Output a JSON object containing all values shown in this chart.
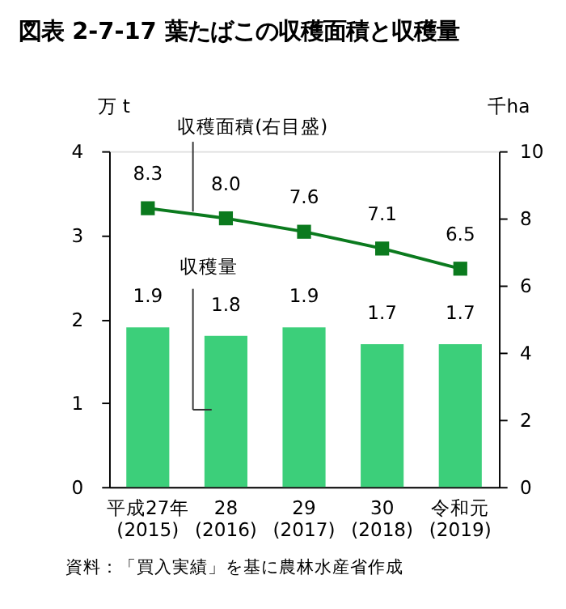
{
  "chart_data": {
    "type": "bar",
    "title": "図表 2-7-17 葉たばこの収穫面積と収穫量",
    "categories": [
      "平成27年\n(2015)",
      "28\n(2016)",
      "29\n(2017)",
      "30\n(2018)",
      "令和元\n(2019)"
    ],
    "series": [
      {
        "name": "収穫量",
        "color": "#3ccf7a",
        "values": [
          1.9,
          1.8,
          1.9,
          1.7,
          1.7
        ],
        "value_labels": [
          "1.9",
          "1.8",
          "1.9",
          "1.7",
          "1.7"
        ]
      },
      {
        "name": "収穫面積(右目盛)",
        "type": "line",
        "axis": "y2",
        "color": "#0b7a1e",
        "marker": "square",
        "values": [
          8.3,
          8.0,
          7.6,
          7.1,
          6.5
        ],
        "value_labels": [
          "8.3",
          "8.0",
          "7.6",
          "7.1",
          "6.5"
        ]
      }
    ],
    "ylabel": "万 t",
    "y2label": "千ha",
    "ylim": [
      0,
      4
    ],
    "yticks": [
      0,
      1,
      2,
      3,
      4
    ],
    "y2lim": [
      0,
      10
    ],
    "y2ticks": [
      0,
      2,
      4,
      6,
      8,
      10
    ],
    "grid": false,
    "annotations": [
      "資料：「買入実績」を基に農林水産省作成"
    ]
  }
}
